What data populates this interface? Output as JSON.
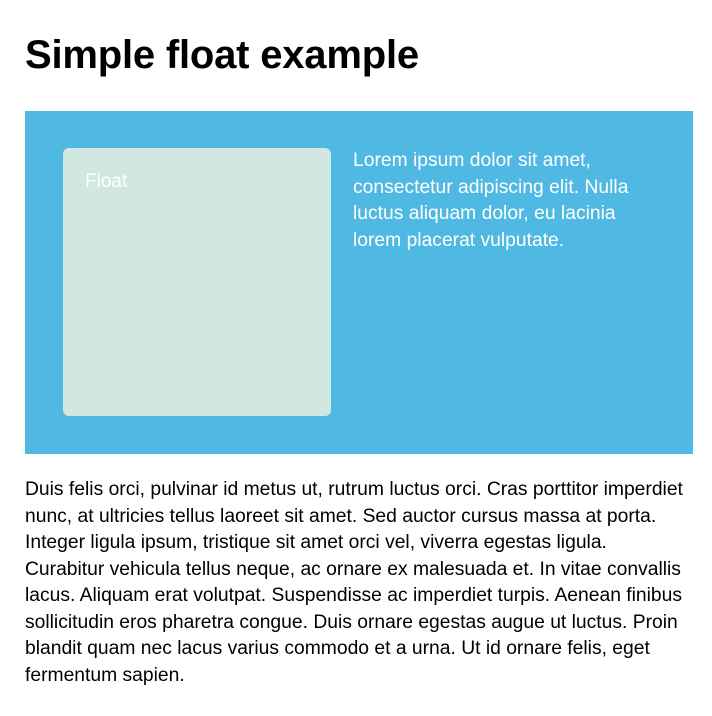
{
  "page": {
    "title": "Simple float example"
  },
  "demo": {
    "float_label": "Float",
    "wrapper_text": "Lorem ipsum dolor sit amet, consectetur adipiscing elit. Nulla luctus aliquam dolor, eu lacinia lorem placerat vulputate.",
    "body_text": "Duis felis orci, pulvinar id metus ut, rutrum luctus orci. Cras porttitor imperdiet nunc, at ultricies tellus laoreet sit amet. Sed auctor cursus massa at porta. Integer ligula ipsum, tristique sit amet orci vel, viverra egestas ligula. Curabitur vehicula tellus neque, ac ornare ex malesuada et. In vitae convallis lacus. Aliquam erat volutpat. Suspendisse ac imperdiet turpis. Aenean finibus sollicitudin eros pharetra congue. Duis ornare egestas augue ut luctus. Proin blandit quam nec lacus varius commodo et a urna. Ut id ornare felis, eget fermentum sapien."
  },
  "colors": {
    "wrapper_background": "#4fb8e3",
    "float_background": "#d0e8df",
    "wrapper_text": "#ffffff",
    "body_text": "#000000"
  }
}
